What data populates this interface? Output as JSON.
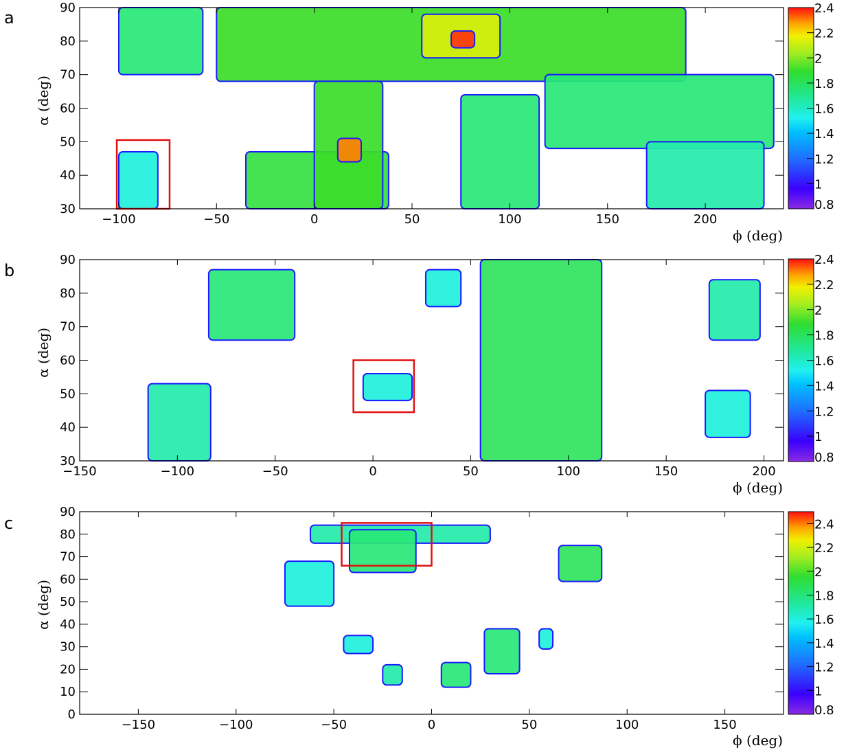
{
  "chart_data": [
    {
      "type": "heatmap",
      "panel_label": "a",
      "xlabel": "ϕ (deg)",
      "ylabel": "α (deg)",
      "xlim": [
        -120,
        240
      ],
      "ylim": [
        30,
        90
      ],
      "x_ticks": [
        -100,
        -50,
        0,
        50,
        100,
        150,
        200
      ],
      "x_tick_labels": [
        "−100",
        "−50",
        "0",
        "50",
        "100",
        "150",
        "200"
      ],
      "y_ticks": [
        30,
        40,
        50,
        60,
        70,
        80,
        90
      ],
      "y_tick_labels": [
        "30",
        "40",
        "50",
        "60",
        "70",
        "80",
        "90"
      ],
      "highlight_box": {
        "phi": [
          -101,
          -74
        ],
        "alpha": [
          30,
          50.5
        ]
      },
      "colorbar": {
        "range": [
          0.8,
          2.4
        ],
        "ticks": [
          2.4,
          2.2,
          2,
          1.8,
          1.6,
          1.4,
          1.2,
          1,
          0.8
        ],
        "tick_labels": [
          "2.4",
          "2.2",
          "2",
          "1.8",
          "1.6",
          "1.4",
          "1.2",
          "1",
          "0.8"
        ]
      },
      "regions": [
        {
          "phi": [
            -100,
            -57
          ],
          "alpha": [
            70,
            90
          ],
          "value": 1.6
        },
        {
          "phi": [
            -50,
            190
          ],
          "alpha": [
            68,
            90
          ],
          "value": 1.75
        },
        {
          "phi": [
            55,
            95
          ],
          "alpha": [
            75,
            88
          ],
          "value": 2.0
        },
        {
          "phi": [
            70,
            82
          ],
          "alpha": [
            78,
            83
          ],
          "value": 2.35
        },
        {
          "phi": [
            -35,
            38
          ],
          "alpha": [
            30,
            47
          ],
          "value": 1.7
        },
        {
          "phi": [
            0,
            35
          ],
          "alpha": [
            30,
            68
          ],
          "value": 1.75
        },
        {
          "phi": [
            12,
            24
          ],
          "alpha": [
            44,
            51
          ],
          "value": 2.25
        },
        {
          "phi": [
            75,
            115
          ],
          "alpha": [
            30,
            64
          ],
          "value": 1.6
        },
        {
          "phi": [
            118,
            235
          ],
          "alpha": [
            48,
            70
          ],
          "value": 1.6
        },
        {
          "phi": [
            170,
            230
          ],
          "alpha": [
            30,
            50
          ],
          "value": 1.55
        },
        {
          "phi": [
            -100,
            -80
          ],
          "alpha": [
            30,
            47
          ],
          "value": 1.5
        }
      ]
    },
    {
      "type": "heatmap",
      "panel_label": "b",
      "xlabel": "ϕ (deg)",
      "ylabel": "α (deg)",
      "xlim": [
        -150,
        210
      ],
      "ylim": [
        30,
        90
      ],
      "x_ticks": [
        -150,
        -100,
        -50,
        0,
        50,
        100,
        150,
        200
      ],
      "x_tick_labels": [
        "−150",
        "−100",
        "−50",
        "0",
        "50",
        "100",
        "150",
        "200"
      ],
      "y_ticks": [
        30,
        40,
        50,
        60,
        70,
        80,
        90
      ],
      "y_tick_labels": [
        "30",
        "40",
        "50",
        "60",
        "70",
        "80",
        "90"
      ],
      "highlight_box": {
        "phi": [
          -10,
          21
        ],
        "alpha": [
          44.5,
          60
        ]
      },
      "colorbar": {
        "range": [
          0.8,
          2.4
        ],
        "ticks": [
          2.4,
          2.2,
          2,
          1.8,
          1.6,
          1.4,
          1.2,
          1,
          0.8
        ],
        "tick_labels": [
          "2.4",
          "2.2",
          "2",
          "1.8",
          "1.6",
          "1.4",
          "1.2",
          "1",
          "0.8"
        ]
      },
      "regions": [
        {
          "phi": [
            -84,
            -40
          ],
          "alpha": [
            66,
            87
          ],
          "value": 1.6
        },
        {
          "phi": [
            -115,
            -83
          ],
          "alpha": [
            30,
            53
          ],
          "value": 1.55
        },
        {
          "phi": [
            -5,
            20
          ],
          "alpha": [
            48,
            56
          ],
          "value": 1.5
        },
        {
          "phi": [
            27,
            45
          ],
          "alpha": [
            76,
            87
          ],
          "value": 1.5
        },
        {
          "phi": [
            55,
            117
          ],
          "alpha": [
            30,
            90
          ],
          "value": 1.65
        },
        {
          "phi": [
            172,
            198
          ],
          "alpha": [
            66,
            84
          ],
          "value": 1.55
        },
        {
          "phi": [
            170,
            193
          ],
          "alpha": [
            37,
            51
          ],
          "value": 1.5
        }
      ]
    },
    {
      "type": "heatmap",
      "panel_label": "c",
      "xlabel": "ϕ (deg)",
      "ylabel": "α (deg)",
      "xlim": [
        -180,
        180
      ],
      "ylim": [
        0,
        90
      ],
      "x_ticks": [
        -150,
        -100,
        -50,
        0,
        50,
        100,
        150
      ],
      "x_tick_labels": [
        "−150",
        "−100",
        "−50",
        "0",
        "50",
        "100",
        "150"
      ],
      "y_ticks": [
        0,
        10,
        20,
        30,
        40,
        50,
        60,
        70,
        80,
        90
      ],
      "y_tick_labels": [
        "0",
        "10",
        "20",
        "30",
        "40",
        "50",
        "60",
        "70",
        "80",
        "90"
      ],
      "highlight_box": {
        "phi": [
          -46,
          0
        ],
        "alpha": [
          66,
          85
        ]
      },
      "colorbar": {
        "range": [
          0.8,
          2.5
        ],
        "ticks": [
          2.4,
          2.2,
          2,
          1.8,
          1.6,
          1.4,
          1.2,
          1,
          0.8
        ],
        "tick_labels": [
          "2.4",
          "2.2",
          "2",
          "1.8",
          "1.6",
          "1.4",
          "1.2",
          "1",
          "0.8"
        ]
      },
      "regions": [
        {
          "phi": [
            -62,
            30
          ],
          "alpha": [
            76,
            84
          ],
          "value": 1.55
        },
        {
          "phi": [
            -42,
            -8
          ],
          "alpha": [
            63,
            82
          ],
          "value": 1.6
        },
        {
          "phi": [
            -75,
            -50
          ],
          "alpha": [
            48,
            68
          ],
          "value": 1.5
        },
        {
          "phi": [
            65,
            87
          ],
          "alpha": [
            59,
            75
          ],
          "value": 1.65
        },
        {
          "phi": [
            -45,
            -30
          ],
          "alpha": [
            27,
            35
          ],
          "value": 1.5
        },
        {
          "phi": [
            -25,
            -15
          ],
          "alpha": [
            13,
            22
          ],
          "value": 1.55
        },
        {
          "phi": [
            5,
            20
          ],
          "alpha": [
            12,
            23
          ],
          "value": 1.6
        },
        {
          "phi": [
            27,
            45
          ],
          "alpha": [
            18,
            38
          ],
          "value": 1.6
        },
        {
          "phi": [
            55,
            62
          ],
          "alpha": [
            29,
            38
          ],
          "value": 1.5
        }
      ]
    }
  ]
}
